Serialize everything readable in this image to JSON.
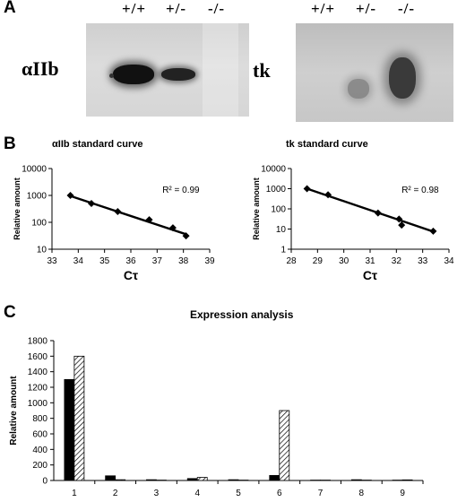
{
  "panels": {
    "A": {
      "letter": "A",
      "left_gel": {
        "gene_label": "αIIb",
        "lanes": [
          "+/+",
          "+/-",
          "-/-"
        ]
      },
      "right_gel": {
        "gene_label": "tk",
        "lanes": [
          "+/+",
          "+/-",
          "-/-"
        ]
      }
    },
    "B": {
      "letter": "B"
    },
    "C": {
      "letter": "C"
    }
  },
  "chart_data": [
    {
      "id": "aIIb-standard-curve",
      "type": "scatter",
      "title": "αIIb standard curve",
      "xlabel": "Cτ",
      "ylabel": "Relative amount",
      "xlim": [
        33,
        39
      ],
      "ylim": [
        10,
        10000
      ],
      "yscale": "log",
      "xticks": [
        33,
        34,
        35,
        36,
        37,
        38,
        39
      ],
      "yticks": [
        10,
        100,
        1000,
        10000
      ],
      "annotation": "R² = 0.99",
      "points": [
        {
          "x": 33.7,
          "y": 1000
        },
        {
          "x": 34.5,
          "y": 500
        },
        {
          "x": 35.5,
          "y": 250
        },
        {
          "x": 36.7,
          "y": 125
        },
        {
          "x": 37.6,
          "y": 62.5
        },
        {
          "x": 38.1,
          "y": 31.25
        }
      ],
      "fit_line": {
        "x": [
          33.7,
          38.1
        ],
        "y": [
          950,
          36
        ]
      }
    },
    {
      "id": "tk-standard-curve",
      "type": "scatter",
      "title": "tk standard curve",
      "xlabel": "Cτ",
      "ylabel": "Relative amount",
      "xlim": [
        28,
        34
      ],
      "ylim": [
        1,
        10000
      ],
      "yscale": "log",
      "xticks": [
        28,
        29,
        30,
        31,
        32,
        33,
        34
      ],
      "yticks": [
        1,
        10,
        100,
        1000,
        10000
      ],
      "annotation": "R² = 0.98",
      "points": [
        {
          "x": 28.6,
          "y": 1000
        },
        {
          "x": 29.4,
          "y": 500
        },
        {
          "x": 31.3,
          "y": 62.5
        },
        {
          "x": 32.1,
          "y": 31.25
        },
        {
          "x": 32.2,
          "y": 15.6
        },
        {
          "x": 33.4,
          "y": 7.8
        }
      ],
      "fit_line": {
        "x": [
          28.6,
          33.4
        ],
        "y": [
          1000,
          7.5
        ]
      }
    },
    {
      "id": "expression-analysis",
      "type": "bar",
      "title": "Expression analysis",
      "xlabel": "",
      "ylabel": "Relative amount",
      "ylim": [
        0,
        1800
      ],
      "yticks": [
        0,
        200,
        400,
        600,
        800,
        1000,
        1200,
        1400,
        1600,
        1800
      ],
      "categories": [
        "1",
        "2",
        "3",
        "4",
        "5",
        "6",
        "7",
        "8",
        "9"
      ],
      "series": [
        {
          "fill": "#000000",
          "values": [
            1300,
            60,
            10,
            25,
            10,
            65,
            5,
            10,
            5
          ]
        },
        {
          "fill": "hatched",
          "values": [
            1600,
            10,
            5,
            40,
            5,
            900,
            5,
            5,
            8
          ]
        }
      ]
    }
  ]
}
